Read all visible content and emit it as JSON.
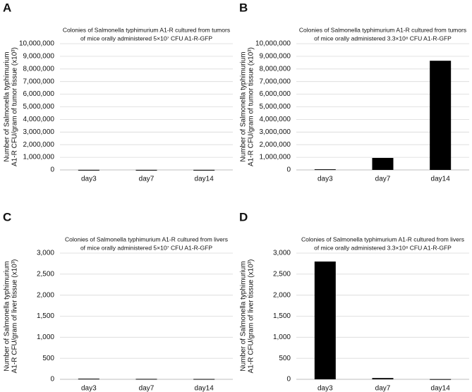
{
  "chart_data": [
    {
      "type": "bar",
      "label": "A",
      "title": [
        "Colonies of Salmonella typhimurium A1-R cultured from tumors",
        "of mice orally administered 5×10⁷ CFU A1-R-GFP"
      ],
      "ylabel": [
        "Number of Salmonella typhimurium",
        "A1-R CFU/gram of tumor tissue (x10³)"
      ],
      "categories": [
        "day3",
        "day7",
        "day14"
      ],
      "values": [
        5000,
        3000,
        4000
      ],
      "color": "#000000",
      "ylim": [
        0,
        10000000
      ],
      "yticks": [
        0,
        {
          "value": 1000000,
          "label": "1,000,000"
        },
        {
          "value": 2000000,
          "label": "2,000,000"
        },
        {
          "value": 3000000,
          "label": "3,000,000"
        },
        {
          "value": 4000000,
          "label": "4,000,000"
        },
        {
          "value": 5000000,
          "label": "5,000,000"
        },
        {
          "value": 6000000,
          "label": "6,000,000"
        },
        {
          "value": 7000000,
          "label": "7,000,000"
        },
        {
          "value": 8000000,
          "label": "8,000,000"
        },
        {
          "value": 9000000,
          "label": "9,000,000"
        },
        {
          "value": 10000000,
          "label": "10,000,000"
        }
      ],
      "grid": true
    },
    {
      "type": "bar",
      "label": "B",
      "title": [
        "Colonies of Salmonella typhimurium A1-R cultured from tumors",
        "of mice orally administered 3.3×10⁸ CFU A1-R-GFP"
      ],
      "ylabel": [
        "Number of Salmonella typhimurium",
        "A1-R CFU/gram of tumor tissue (x10³)"
      ],
      "categories": [
        "day3",
        "day7",
        "day14"
      ],
      "values": [
        50000,
        950000,
        8650000
      ],
      "color": "#000000",
      "ylim": [
        0,
        10000000
      ],
      "yticks": [
        0,
        {
          "value": 1000000,
          "label": "1,000,000"
        },
        {
          "value": 2000000,
          "label": "2,000,000"
        },
        {
          "value": 3000000,
          "label": "3,000,000"
        },
        {
          "value": 4000000,
          "label": "4,000,000"
        },
        {
          "value": 5000000,
          "label": "5,000,000"
        },
        {
          "value": 6000000,
          "label": "6,000,000"
        },
        {
          "value": 7000000,
          "label": "7,000,000"
        },
        {
          "value": 8000000,
          "label": "8,000,000"
        },
        {
          "value": 9000000,
          "label": "9,000,000"
        },
        {
          "value": 10000000,
          "label": "10,000,000"
        }
      ],
      "grid": true
    },
    {
      "type": "bar",
      "label": "C",
      "title": [
        "Colonies of Salmonella typhimurium A1-R cultured from livers",
        "of mice orally administered 5×10⁷ CFU A1-R-GFP"
      ],
      "ylabel": [
        "Number of Salmonella typhimurium",
        "A1-R CFU/gram of liver tissue (x10³)"
      ],
      "categories": [
        "day3",
        "day7",
        "day14"
      ],
      "values": [
        15,
        10,
        8
      ],
      "color": "#000000",
      "ylim": [
        0,
        3000
      ],
      "yticks": [
        0,
        500,
        {
          "value": 1000,
          "label": "1,000"
        },
        {
          "value": 1500,
          "label": "1,500"
        },
        {
          "value": 2000,
          "label": "2,000"
        },
        {
          "value": 2500,
          "label": "2,500"
        },
        {
          "value": 3000,
          "label": "3,000"
        }
      ],
      "grid": true
    },
    {
      "type": "bar",
      "label": "D",
      "title": [
        "Colonies of Salmonella typhimurium A1-R cultured from livers",
        "of mice orally administered 3.3×10⁸ CFU A1-R-GFP"
      ],
      "ylabel": [
        "Number of Salmonella typhimurium",
        "A1-R CFU/gram of liver tissue (x10³)"
      ],
      "categories": [
        "day3",
        "day7",
        "day14"
      ],
      "values": [
        2800,
        30,
        5
      ],
      "color": "#000000",
      "ylim": [
        0,
        3000
      ],
      "yticks": [
        0,
        500,
        {
          "value": 1000,
          "label": "1,000"
        },
        {
          "value": 1500,
          "label": "1,500"
        },
        {
          "value": 2000,
          "label": "2,000"
        },
        {
          "value": 2500,
          "label": "2,500"
        },
        {
          "value": 3000,
          "label": "3,000"
        }
      ],
      "grid": true
    }
  ]
}
